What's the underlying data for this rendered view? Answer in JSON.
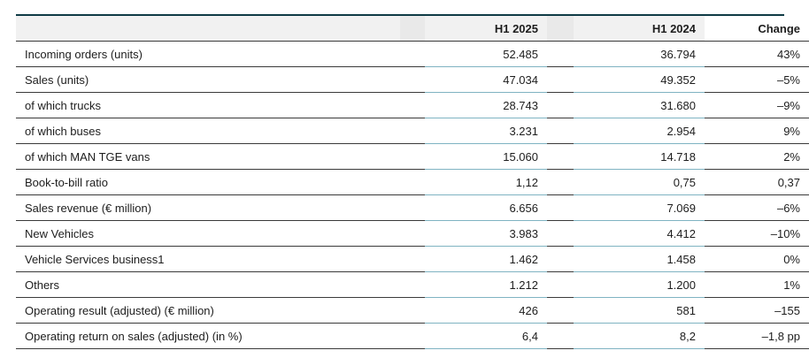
{
  "table": {
    "headers": {
      "label": "",
      "current": "H1 2025",
      "previous": "H1 2024",
      "change": "Change"
    },
    "rows": [
      {
        "label": "Incoming orders (units)",
        "current": "52.485",
        "previous": "36.794",
        "change": "43%"
      },
      {
        "label": "Sales (units)",
        "current": "47.034",
        "previous": "49.352",
        "change": "–5%"
      },
      {
        "label": "of which trucks",
        "current": "28.743",
        "previous": "31.680",
        "change": "–9%"
      },
      {
        "label": "of which buses",
        "current": "3.231",
        "previous": "2.954",
        "change": "9%"
      },
      {
        "label": "of which MAN TGE vans",
        "current": "15.060",
        "previous": "14.718",
        "change": "2%"
      },
      {
        "label": "Book-to-bill ratio",
        "current": "1,12",
        "previous": "0,75",
        "change": "0,37"
      },
      {
        "label": "Sales revenue (€ million)",
        "current": "6.656",
        "previous": "7.069",
        "change": "–6%"
      },
      {
        "label": "New Vehicles",
        "current": "3.983",
        "previous": "4.412",
        "change": "–10%"
      },
      {
        "label": "Vehicle Services business1",
        "current": "1.462",
        "previous": "1.458",
        "change": "0%"
      },
      {
        "label": "Others",
        "current": "1.212",
        "previous": "1.200",
        "change": "1%"
      },
      {
        "label": "Operating result (adjusted) (€ million)",
        "current": "426",
        "previous": "581",
        "change": "–155"
      },
      {
        "label": "Operating return on sales (adjusted) (in %)",
        "current": "6,4",
        "previous": "8,2",
        "change": "–1,8 pp"
      }
    ]
  },
  "colors": {
    "top_rule": "#0f3b45",
    "header_shade": "#f1f1f1",
    "value_underline": "#7fb3c2"
  }
}
